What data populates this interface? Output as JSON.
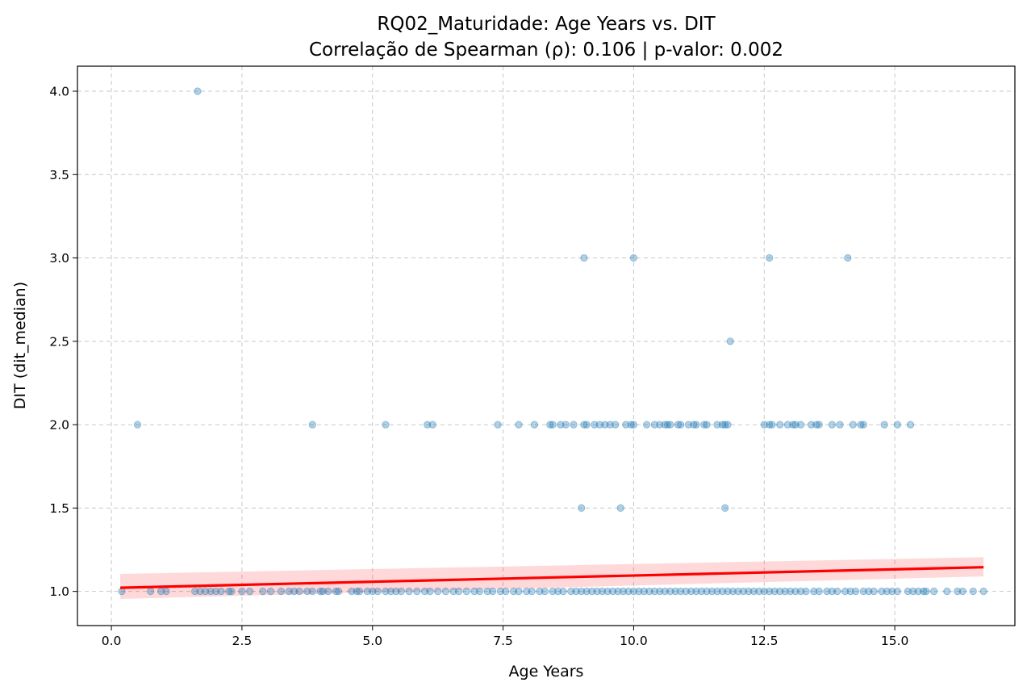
{
  "chart_data": {
    "type": "scatter",
    "title": "RQ02_Maturidade: Age Years vs. DIT",
    "subtitle": "Correlação de Spearman (ρ): 0.106 | p-valor: 0.002",
    "xlabel": "Age Years",
    "ylabel": "DIT (dit_median)",
    "xlim": [
      -0.65,
      17.3
    ],
    "ylim": [
      0.795,
      4.15
    ],
    "x_ticks": [
      0.0,
      2.5,
      5.0,
      7.5,
      10.0,
      12.5,
      15.0
    ],
    "x_tick_labels": [
      "0.0",
      "2.5",
      "5.0",
      "7.5",
      "10.0",
      "12.5",
      "15.0"
    ],
    "y_ticks": [
      1.0,
      1.5,
      2.0,
      2.5,
      3.0,
      3.5,
      4.0
    ],
    "y_tick_labels": [
      "1.0",
      "1.5",
      "2.0",
      "2.5",
      "3.0",
      "3.5",
      "4.0"
    ],
    "grid": true,
    "colors": {
      "points": "#1f77b4",
      "regression_line": "#ff0000",
      "confidence_band": "#ff0000"
    },
    "regression": {
      "x": [
        0.17,
        16.7
      ],
      "y": [
        1.022,
        1.145
      ],
      "ci_lower": [
        0.955,
        1.09
      ],
      "ci_upper": [
        1.105,
        1.205
      ]
    },
    "points": [
      {
        "x": 1.65,
        "y": 4.0
      },
      {
        "x": 9.05,
        "y": 3.0
      },
      {
        "x": 10.0,
        "y": 3.0
      },
      {
        "x": 12.6,
        "y": 3.0
      },
      {
        "x": 14.1,
        "y": 3.0
      },
      {
        "x": 11.85,
        "y": 2.5
      },
      {
        "x": 0.5,
        "y": 2.0
      },
      {
        "x": 3.85,
        "y": 2.0
      },
      {
        "x": 5.25,
        "y": 2.0
      },
      {
        "x": 6.05,
        "y": 2.0
      },
      {
        "x": 6.15,
        "y": 2.0
      },
      {
        "x": 7.4,
        "y": 2.0
      },
      {
        "x": 7.8,
        "y": 2.0
      },
      {
        "x": 8.1,
        "y": 2.0
      },
      {
        "x": 8.4,
        "y": 2.0
      },
      {
        "x": 8.45,
        "y": 2.0
      },
      {
        "x": 8.6,
        "y": 2.0
      },
      {
        "x": 8.7,
        "y": 2.0
      },
      {
        "x": 8.85,
        "y": 2.0
      },
      {
        "x": 9.05,
        "y": 2.0
      },
      {
        "x": 9.1,
        "y": 2.0
      },
      {
        "x": 9.25,
        "y": 2.0
      },
      {
        "x": 9.35,
        "y": 2.0
      },
      {
        "x": 9.45,
        "y": 2.0
      },
      {
        "x": 9.55,
        "y": 2.0
      },
      {
        "x": 9.65,
        "y": 2.0
      },
      {
        "x": 9.85,
        "y": 2.0
      },
      {
        "x": 9.95,
        "y": 2.0
      },
      {
        "x": 10.0,
        "y": 2.0
      },
      {
        "x": 10.25,
        "y": 2.0
      },
      {
        "x": 10.4,
        "y": 2.0
      },
      {
        "x": 10.5,
        "y": 2.0
      },
      {
        "x": 10.6,
        "y": 2.0
      },
      {
        "x": 10.65,
        "y": 2.0
      },
      {
        "x": 10.7,
        "y": 2.0
      },
      {
        "x": 10.85,
        "y": 2.0
      },
      {
        "x": 10.9,
        "y": 2.0
      },
      {
        "x": 11.05,
        "y": 2.0
      },
      {
        "x": 11.15,
        "y": 2.0
      },
      {
        "x": 11.2,
        "y": 2.0
      },
      {
        "x": 11.35,
        "y": 2.0
      },
      {
        "x": 11.4,
        "y": 2.0
      },
      {
        "x": 11.6,
        "y": 2.0
      },
      {
        "x": 11.7,
        "y": 2.0
      },
      {
        "x": 11.75,
        "y": 2.0
      },
      {
        "x": 11.8,
        "y": 2.0
      },
      {
        "x": 12.5,
        "y": 2.0
      },
      {
        "x": 12.6,
        "y": 2.0
      },
      {
        "x": 12.65,
        "y": 2.0
      },
      {
        "x": 12.8,
        "y": 2.0
      },
      {
        "x": 12.95,
        "y": 2.0
      },
      {
        "x": 13.05,
        "y": 2.0
      },
      {
        "x": 13.1,
        "y": 2.0
      },
      {
        "x": 13.2,
        "y": 2.0
      },
      {
        "x": 13.4,
        "y": 2.0
      },
      {
        "x": 13.5,
        "y": 2.0
      },
      {
        "x": 13.55,
        "y": 2.0
      },
      {
        "x": 13.8,
        "y": 2.0
      },
      {
        "x": 13.95,
        "y": 2.0
      },
      {
        "x": 14.2,
        "y": 2.0
      },
      {
        "x": 14.35,
        "y": 2.0
      },
      {
        "x": 14.4,
        "y": 2.0
      },
      {
        "x": 14.8,
        "y": 2.0
      },
      {
        "x": 15.05,
        "y": 2.0
      },
      {
        "x": 15.3,
        "y": 2.0
      },
      {
        "x": 9.0,
        "y": 1.5
      },
      {
        "x": 9.75,
        "y": 1.5
      },
      {
        "x": 11.75,
        "y": 1.5
      },
      {
        "x": 0.2,
        "y": 1.0
      },
      {
        "x": 0.75,
        "y": 1.0
      },
      {
        "x": 0.95,
        "y": 1.0
      },
      {
        "x": 1.05,
        "y": 1.0
      },
      {
        "x": 1.6,
        "y": 1.0
      },
      {
        "x": 1.7,
        "y": 1.0
      },
      {
        "x": 1.8,
        "y": 1.0
      },
      {
        "x": 1.9,
        "y": 1.0
      },
      {
        "x": 2.0,
        "y": 1.0
      },
      {
        "x": 2.1,
        "y": 1.0
      },
      {
        "x": 2.25,
        "y": 1.0
      },
      {
        "x": 2.3,
        "y": 1.0
      },
      {
        "x": 2.5,
        "y": 1.0
      },
      {
        "x": 2.65,
        "y": 1.0
      },
      {
        "x": 2.9,
        "y": 1.0
      },
      {
        "x": 3.05,
        "y": 1.0
      },
      {
        "x": 3.25,
        "y": 1.0
      },
      {
        "x": 3.4,
        "y": 1.0
      },
      {
        "x": 3.5,
        "y": 1.0
      },
      {
        "x": 3.6,
        "y": 1.0
      },
      {
        "x": 3.75,
        "y": 1.0
      },
      {
        "x": 3.85,
        "y": 1.0
      },
      {
        "x": 4.0,
        "y": 1.0
      },
      {
        "x": 4.05,
        "y": 1.0
      },
      {
        "x": 4.15,
        "y": 1.0
      },
      {
        "x": 4.3,
        "y": 1.0
      },
      {
        "x": 4.35,
        "y": 1.0
      },
      {
        "x": 4.6,
        "y": 1.0
      },
      {
        "x": 4.7,
        "y": 1.0
      },
      {
        "x": 4.75,
        "y": 1.0
      },
      {
        "x": 4.9,
        "y": 1.0
      },
      {
        "x": 5.0,
        "y": 1.0
      },
      {
        "x": 5.1,
        "y": 1.0
      },
      {
        "x": 5.25,
        "y": 1.0
      },
      {
        "x": 5.35,
        "y": 1.0
      },
      {
        "x": 5.45,
        "y": 1.0
      },
      {
        "x": 5.55,
        "y": 1.0
      },
      {
        "x": 5.7,
        "y": 1.0
      },
      {
        "x": 5.85,
        "y": 1.0
      },
      {
        "x": 6.0,
        "y": 1.0
      },
      {
        "x": 6.1,
        "y": 1.0
      },
      {
        "x": 6.25,
        "y": 1.0
      },
      {
        "x": 6.4,
        "y": 1.0
      },
      {
        "x": 6.55,
        "y": 1.0
      },
      {
        "x": 6.65,
        "y": 1.0
      },
      {
        "x": 6.8,
        "y": 1.0
      },
      {
        "x": 6.95,
        "y": 1.0
      },
      {
        "x": 7.05,
        "y": 1.0
      },
      {
        "x": 7.2,
        "y": 1.0
      },
      {
        "x": 7.3,
        "y": 1.0
      },
      {
        "x": 7.45,
        "y": 1.0
      },
      {
        "x": 7.55,
        "y": 1.0
      },
      {
        "x": 7.7,
        "y": 1.0
      },
      {
        "x": 7.8,
        "y": 1.0
      },
      {
        "x": 7.95,
        "y": 1.0
      },
      {
        "x": 8.05,
        "y": 1.0
      },
      {
        "x": 8.2,
        "y": 1.0
      },
      {
        "x": 8.3,
        "y": 1.0
      },
      {
        "x": 8.45,
        "y": 1.0
      },
      {
        "x": 8.55,
        "y": 1.0
      },
      {
        "x": 8.65,
        "y": 1.0
      },
      {
        "x": 8.8,
        "y": 1.0
      },
      {
        "x": 8.9,
        "y": 1.0
      },
      {
        "x": 9.0,
        "y": 1.0
      },
      {
        "x": 9.1,
        "y": 1.0
      },
      {
        "x": 9.2,
        "y": 1.0
      },
      {
        "x": 9.3,
        "y": 1.0
      },
      {
        "x": 9.4,
        "y": 1.0
      },
      {
        "x": 9.5,
        "y": 1.0
      },
      {
        "x": 9.6,
        "y": 1.0
      },
      {
        "x": 9.7,
        "y": 1.0
      },
      {
        "x": 9.8,
        "y": 1.0
      },
      {
        "x": 9.9,
        "y": 1.0
      },
      {
        "x": 10.0,
        "y": 1.0
      },
      {
        "x": 10.1,
        "y": 1.0
      },
      {
        "x": 10.2,
        "y": 1.0
      },
      {
        "x": 10.3,
        "y": 1.0
      },
      {
        "x": 10.4,
        "y": 1.0
      },
      {
        "x": 10.5,
        "y": 1.0
      },
      {
        "x": 10.6,
        "y": 1.0
      },
      {
        "x": 10.7,
        "y": 1.0
      },
      {
        "x": 10.8,
        "y": 1.0
      },
      {
        "x": 10.9,
        "y": 1.0
      },
      {
        "x": 11.0,
        "y": 1.0
      },
      {
        "x": 11.1,
        "y": 1.0
      },
      {
        "x": 11.2,
        "y": 1.0
      },
      {
        "x": 11.3,
        "y": 1.0
      },
      {
        "x": 11.4,
        "y": 1.0
      },
      {
        "x": 11.5,
        "y": 1.0
      },
      {
        "x": 11.6,
        "y": 1.0
      },
      {
        "x": 11.7,
        "y": 1.0
      },
      {
        "x": 11.8,
        "y": 1.0
      },
      {
        "x": 11.9,
        "y": 1.0
      },
      {
        "x": 12.0,
        "y": 1.0
      },
      {
        "x": 12.1,
        "y": 1.0
      },
      {
        "x": 12.2,
        "y": 1.0
      },
      {
        "x": 12.3,
        "y": 1.0
      },
      {
        "x": 12.4,
        "y": 1.0
      },
      {
        "x": 12.5,
        "y": 1.0
      },
      {
        "x": 12.6,
        "y": 1.0
      },
      {
        "x": 12.7,
        "y": 1.0
      },
      {
        "x": 12.8,
        "y": 1.0
      },
      {
        "x": 12.9,
        "y": 1.0
      },
      {
        "x": 13.0,
        "y": 1.0
      },
      {
        "x": 13.1,
        "y": 1.0
      },
      {
        "x": 13.2,
        "y": 1.0
      },
      {
        "x": 13.3,
        "y": 1.0
      },
      {
        "x": 13.45,
        "y": 1.0
      },
      {
        "x": 13.55,
        "y": 1.0
      },
      {
        "x": 13.7,
        "y": 1.0
      },
      {
        "x": 13.8,
        "y": 1.0
      },
      {
        "x": 13.9,
        "y": 1.0
      },
      {
        "x": 14.05,
        "y": 1.0
      },
      {
        "x": 14.15,
        "y": 1.0
      },
      {
        "x": 14.25,
        "y": 1.0
      },
      {
        "x": 14.4,
        "y": 1.0
      },
      {
        "x": 14.5,
        "y": 1.0
      },
      {
        "x": 14.6,
        "y": 1.0
      },
      {
        "x": 14.75,
        "y": 1.0
      },
      {
        "x": 14.85,
        "y": 1.0
      },
      {
        "x": 14.95,
        "y": 1.0
      },
      {
        "x": 15.05,
        "y": 1.0
      },
      {
        "x": 15.25,
        "y": 1.0
      },
      {
        "x": 15.35,
        "y": 1.0
      },
      {
        "x": 15.45,
        "y": 1.0
      },
      {
        "x": 15.55,
        "y": 1.0
      },
      {
        "x": 15.6,
        "y": 1.0
      },
      {
        "x": 15.75,
        "y": 1.0
      },
      {
        "x": 16.0,
        "y": 1.0
      },
      {
        "x": 16.2,
        "y": 1.0
      },
      {
        "x": 16.3,
        "y": 1.0
      },
      {
        "x": 16.5,
        "y": 1.0
      },
      {
        "x": 16.7,
        "y": 1.0
      }
    ]
  }
}
